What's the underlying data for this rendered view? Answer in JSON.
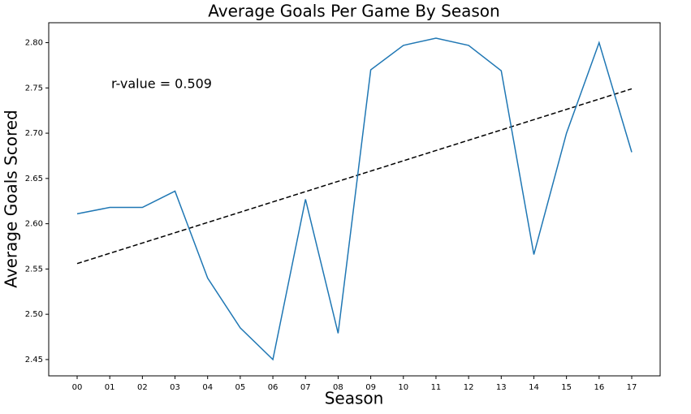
{
  "chart_data": {
    "type": "line",
    "title": "Average Goals Per Game By Season",
    "x_label": "Season",
    "y_label": "Average Goals Scored",
    "annotation": "r-value = 0.509",
    "categories": [
      "00",
      "01",
      "02",
      "03",
      "04",
      "05",
      "06",
      "07",
      "08",
      "09",
      "10",
      "11",
      "12",
      "13",
      "14",
      "15",
      "16",
      "17"
    ],
    "values": [
      2.611,
      2.618,
      2.618,
      2.636,
      2.54,
      2.485,
      2.45,
      2.627,
      2.479,
      2.77,
      2.797,
      2.805,
      2.797,
      2.769,
      2.566,
      2.7,
      2.8,
      2.679
    ],
    "color": "#1f77b4",
    "trend_line": {
      "start": 2.556,
      "end": 2.749,
      "color": "#000000",
      "dashed": true
    },
    "ylim": [
      2.432,
      2.822
    ],
    "yticks": [
      2.45,
      {
        "value": 2.5,
        "label": "2.50"
      },
      2.55,
      {
        "value": 2.6,
        "label": "2.60"
      },
      2.65,
      {
        "value": 2.7,
        "label": "2.70"
      },
      2.75,
      {
        "value": 2.8,
        "label": "2.80"
      }
    ],
    "grid": false
  }
}
